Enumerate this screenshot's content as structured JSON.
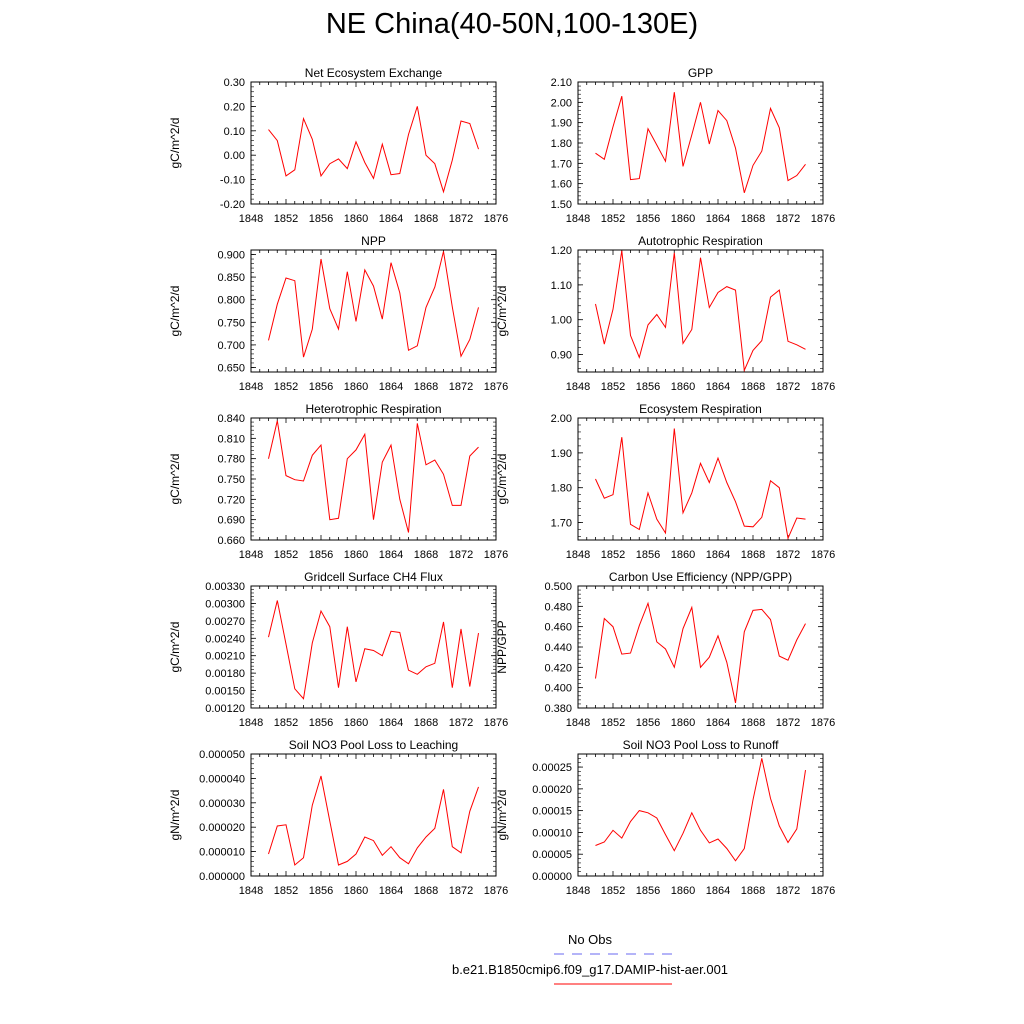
{
  "title": "NE China(40-50N,100-130E)",
  "colors": {
    "model_line": "#ff0000",
    "obs_line": "#6a6af0",
    "axis": "#000000"
  },
  "legend": {
    "obs_label": "No Obs",
    "model_label": "b.e21.B1850cmip6.f09_g17.DAMIP-hist-aer.001"
  },
  "chart_data": [
    {
      "type": "line",
      "title": "Net Ecosystem Exchange",
      "ylabel": "gC/m^2/d",
      "xlim": [
        1848,
        1876
      ],
      "xticks": [
        "1848",
        "1852",
        "1856",
        "1860",
        "1864",
        "1868",
        "1872",
        "1876"
      ],
      "ylim": [
        -0.2,
        0.3
      ],
      "yticks": [
        "-0.20",
        "-0.10",
        "0.00",
        "0.10",
        "0.20",
        "0.30"
      ],
      "x": [
        1850,
        1851,
        1852,
        1853,
        1854,
        1855,
        1856,
        1857,
        1858,
        1859,
        1860,
        1861,
        1862,
        1863,
        1864,
        1865,
        1866,
        1867,
        1868,
        1869,
        1870,
        1871,
        1872,
        1873,
        1874
      ],
      "values": [
        0.105,
        0.06,
        -0.085,
        -0.06,
        0.15,
        0.065,
        -0.085,
        -0.035,
        -0.015,
        -0.055,
        0.055,
        -0.03,
        -0.095,
        0.045,
        -0.08,
        -0.075,
        0.085,
        0.2,
        0.0,
        -0.035,
        -0.15,
        -0.02,
        0.14,
        0.13,
        0.025
      ],
      "series": [
        {
          "name": "b.e21.B1850cmip6.f09_g17.DAMIP-hist-aer.001"
        }
      ]
    },
    {
      "type": "line",
      "title": "GPP",
      "ylabel": "",
      "xlim": [
        1848,
        1876
      ],
      "xticks": [
        "1848",
        "1852",
        "1856",
        "1860",
        "1864",
        "1868",
        "1872",
        "1876"
      ],
      "ylim": [
        1.5,
        2.1
      ],
      "yticks": [
        "1.50",
        "1.60",
        "1.70",
        "1.80",
        "1.90",
        "2.00",
        "2.10"
      ],
      "x": [
        1850,
        1851,
        1852,
        1853,
        1854,
        1855,
        1856,
        1857,
        1858,
        1859,
        1860,
        1861,
        1862,
        1863,
        1864,
        1865,
        1866,
        1867,
        1868,
        1869,
        1870,
        1871,
        1872,
        1873,
        1874
      ],
      "values": [
        1.75,
        1.72,
        1.88,
        2.03,
        1.62,
        1.625,
        1.87,
        1.79,
        1.71,
        2.05,
        1.685,
        1.84,
        2.0,
        1.795,
        1.96,
        1.91,
        1.775,
        1.555,
        1.69,
        1.76,
        1.97,
        1.875,
        1.615,
        1.64,
        1.695
      ],
      "series": [
        {
          "name": "b.e21.B1850cmip6.f09_g17.DAMIP-hist-aer.001"
        }
      ]
    },
    {
      "type": "line",
      "title": "NPP",
      "ylabel": "gC/m^2/d",
      "xlim": [
        1848,
        1876
      ],
      "xticks": [
        "1848",
        "1852",
        "1856",
        "1860",
        "1864",
        "1868",
        "1872",
        "1876"
      ],
      "ylim": [
        0.64,
        0.91
      ],
      "yticks": [
        "0.650",
        "0.700",
        "0.750",
        "0.800",
        "0.850",
        "0.900"
      ],
      "x": [
        1850,
        1851,
        1852,
        1853,
        1854,
        1855,
        1856,
        1857,
        1858,
        1859,
        1860,
        1861,
        1862,
        1863,
        1864,
        1865,
        1866,
        1867,
        1868,
        1869,
        1870,
        1871,
        1872,
        1873,
        1874
      ],
      "values": [
        0.71,
        0.79,
        0.848,
        0.842,
        0.673,
        0.735,
        0.89,
        0.78,
        0.735,
        0.862,
        0.752,
        0.866,
        0.83,
        0.757,
        0.882,
        0.815,
        0.688,
        0.698,
        0.783,
        0.828,
        0.907,
        0.784,
        0.675,
        0.712,
        0.783
      ],
      "series": [
        {
          "name": "b.e21.B1850cmip6.f09_g17.DAMIP-hist-aer.001"
        }
      ]
    },
    {
      "type": "line",
      "title": "Autotrophic Respiration",
      "ylabel": "gC/m^2/d",
      "xlim": [
        1848,
        1876
      ],
      "xticks": [
        "1848",
        "1852",
        "1856",
        "1860",
        "1864",
        "1868",
        "1872",
        "1876"
      ],
      "ylim": [
        0.85,
        1.2
      ],
      "yticks": [
        "0.90",
        "1.00",
        "1.10",
        "1.20"
      ],
      "x": [
        1850,
        1851,
        1852,
        1853,
        1854,
        1855,
        1856,
        1857,
        1858,
        1859,
        1860,
        1861,
        1862,
        1863,
        1864,
        1865,
        1866,
        1867,
        1868,
        1869,
        1870,
        1871,
        1872,
        1873,
        1874
      ],
      "values": [
        1.045,
        0.93,
        1.03,
        1.198,
        0.955,
        0.892,
        0.985,
        1.015,
        0.978,
        1.192,
        0.932,
        0.972,
        1.178,
        1.035,
        1.078,
        1.095,
        1.085,
        0.855,
        0.912,
        0.94,
        1.065,
        1.085,
        0.938,
        0.928,
        0.915
      ],
      "series": [
        {
          "name": "b.e21.B1850cmip6.f09_g17.DAMIP-hist-aer.001"
        }
      ]
    },
    {
      "type": "line",
      "title": "Heterotrophic Respiration",
      "ylabel": "gC/m^2/d",
      "xlim": [
        1848,
        1876
      ],
      "xticks": [
        "1848",
        "1852",
        "1856",
        "1860",
        "1864",
        "1868",
        "1872",
        "1876"
      ],
      "ylim": [
        0.66,
        0.84
      ],
      "yticks": [
        "0.660",
        "0.690",
        "0.720",
        "0.750",
        "0.780",
        "0.810",
        "0.840"
      ],
      "x": [
        1850,
        1851,
        1852,
        1853,
        1854,
        1855,
        1856,
        1857,
        1858,
        1859,
        1860,
        1861,
        1862,
        1863,
        1864,
        1865,
        1866,
        1867,
        1868,
        1869,
        1870,
        1871,
        1872,
        1873,
        1874
      ],
      "values": [
        0.78,
        0.836,
        0.755,
        0.749,
        0.747,
        0.785,
        0.8,
        0.69,
        0.692,
        0.78,
        0.793,
        0.816,
        0.69,
        0.775,
        0.8,
        0.72,
        0.671,
        0.832,
        0.771,
        0.778,
        0.757,
        0.711,
        0.711,
        0.784,
        0.797
      ],
      "series": [
        {
          "name": "b.e21.B1850cmip6.f09_g17.DAMIP-hist-aer.001"
        }
      ]
    },
    {
      "type": "line",
      "title": "Ecosystem Respiration",
      "ylabel": "gC/m^2/d",
      "xlim": [
        1848,
        1876
      ],
      "xticks": [
        "1848",
        "1852",
        "1856",
        "1860",
        "1864",
        "1868",
        "1872",
        "1876"
      ],
      "ylim": [
        1.65,
        2.0
      ],
      "yticks": [
        "1.70",
        "1.80",
        "1.90",
        "2.00"
      ],
      "x": [
        1850,
        1851,
        1852,
        1853,
        1854,
        1855,
        1856,
        1857,
        1858,
        1859,
        1860,
        1861,
        1862,
        1863,
        1864,
        1865,
        1866,
        1867,
        1868,
        1869,
        1870,
        1871,
        1872,
        1873,
        1874
      ],
      "values": [
        1.825,
        1.77,
        1.78,
        1.945,
        1.695,
        1.68,
        1.785,
        1.71,
        1.67,
        1.97,
        1.728,
        1.785,
        1.87,
        1.815,
        1.885,
        1.815,
        1.76,
        1.69,
        1.688,
        1.715,
        1.82,
        1.8,
        1.655,
        1.713,
        1.71
      ],
      "series": [
        {
          "name": "b.e21.B1850cmip6.f09_g17.DAMIP-hist-aer.001"
        }
      ]
    },
    {
      "type": "line",
      "title": "Gridcell Surface CH4 Flux",
      "ylabel": "gC/m^2/d",
      "xlim": [
        1848,
        1876
      ],
      "xticks": [
        "1848",
        "1852",
        "1856",
        "1860",
        "1864",
        "1868",
        "1872",
        "1876"
      ],
      "ylim": [
        0.0012,
        0.0033
      ],
      "yticks": [
        "0.00120",
        "0.00150",
        "0.00180",
        "0.00210",
        "0.00240",
        "0.00270",
        "0.00300",
        "0.00330"
      ],
      "x": [
        1850,
        1851,
        1852,
        1853,
        1854,
        1855,
        1856,
        1857,
        1858,
        1859,
        1860,
        1861,
        1862,
        1863,
        1864,
        1865,
        1866,
        1867,
        1868,
        1869,
        1870,
        1871,
        1872,
        1873,
        1874
      ],
      "values": [
        0.00242,
        0.00305,
        0.0023,
        0.00153,
        0.00136,
        0.00232,
        0.00287,
        0.0026,
        0.00155,
        0.0026,
        0.00165,
        0.00222,
        0.00219,
        0.0021,
        0.00252,
        0.0025,
        0.00185,
        0.00178,
        0.00191,
        0.00197,
        0.00268,
        0.00155,
        0.00256,
        0.00157,
        0.00249
      ],
      "series": [
        {
          "name": "b.e21.B1850cmip6.f09_g17.DAMIP-hist-aer.001"
        }
      ]
    },
    {
      "type": "line",
      "title": "Carbon Use Efficiency (NPP/GPP)",
      "ylabel": "NPP/GPP",
      "xlim": [
        1848,
        1876
      ],
      "xticks": [
        "1848",
        "1852",
        "1856",
        "1860",
        "1864",
        "1868",
        "1872",
        "1876"
      ],
      "ylim": [
        0.38,
        0.5
      ],
      "yticks": [
        "0.380",
        "0.400",
        "0.420",
        "0.440",
        "0.460",
        "0.480",
        "0.500"
      ],
      "x": [
        1850,
        1851,
        1852,
        1853,
        1854,
        1855,
        1856,
        1857,
        1858,
        1859,
        1860,
        1861,
        1862,
        1863,
        1864,
        1865,
        1866,
        1867,
        1868,
        1869,
        1870,
        1871,
        1872,
        1873,
        1874
      ],
      "values": [
        0.409,
        0.468,
        0.46,
        0.433,
        0.434,
        0.461,
        0.483,
        0.445,
        0.438,
        0.42,
        0.458,
        0.479,
        0.42,
        0.43,
        0.451,
        0.425,
        0.385,
        0.455,
        0.476,
        0.477,
        0.467,
        0.431,
        0.427,
        0.447,
        0.463
      ],
      "series": [
        {
          "name": "b.e21.B1850cmip6.f09_g17.DAMIP-hist-aer.001"
        }
      ]
    },
    {
      "type": "line",
      "title": "Soil NO3 Pool Loss to Leaching",
      "ylabel": "gN/m^2/d",
      "xlim": [
        1848,
        1876
      ],
      "xticks": [
        "1848",
        "1852",
        "1856",
        "1860",
        "1864",
        "1868",
        "1872",
        "1876"
      ],
      "ylim": [
        0.0,
        5e-05
      ],
      "yticks": [
        "0.000000",
        "0.000010",
        "0.000020",
        "0.000030",
        "0.000040",
        "0.000050"
      ],
      "x": [
        1850,
        1851,
        1852,
        1853,
        1854,
        1855,
        1856,
        1857,
        1858,
        1859,
        1860,
        1861,
        1862,
        1863,
        1864,
        1865,
        1866,
        1867,
        1868,
        1869,
        1870,
        1871,
        1872,
        1873,
        1874
      ],
      "values": [
        9e-06,
        2.05e-05,
        2.1e-05,
        4.5e-06,
        7.5e-06,
        2.9e-05,
        4.1e-05,
        2.25e-05,
        4.5e-06,
        6e-06,
        9e-06,
        1.6e-05,
        1.45e-05,
        8.5e-06,
        1.2e-05,
        7.5e-06,
        5e-06,
        1.15e-05,
        1.6e-05,
        1.95e-05,
        3.55e-05,
        1.2e-05,
        9.5e-06,
        2.65e-05,
        3.65e-05
      ],
      "series": [
        {
          "name": "b.e21.B1850cmip6.f09_g17.DAMIP-hist-aer.001"
        }
      ]
    },
    {
      "type": "line",
      "title": "Soil NO3 Pool Loss to Runoff",
      "ylabel": "gN/m^2/d",
      "xlim": [
        1848,
        1876
      ],
      "xticks": [
        "1848",
        "1852",
        "1856",
        "1860",
        "1864",
        "1868",
        "1872",
        "1876"
      ],
      "ylim": [
        0.0,
        0.00028
      ],
      "yticks": [
        "0.00000",
        "0.00005",
        "0.00010",
        "0.00015",
        "0.00020",
        "0.00025"
      ],
      "x": [
        1850,
        1851,
        1852,
        1853,
        1854,
        1855,
        1856,
        1857,
        1858,
        1859,
        1860,
        1861,
        1862,
        1863,
        1864,
        1865,
        1866,
        1867,
        1868,
        1869,
        1870,
        1871,
        1872,
        1873,
        1874
      ],
      "values": [
        7e-05,
        7.8e-05,
        0.000105,
        8.7e-05,
        0.000125,
        0.00015,
        0.000145,
        0.000133,
        9.5e-05,
        5.8e-05,
        9.8e-05,
        0.000145,
        0.000105,
        7.6e-05,
        8.5e-05,
        6.3e-05,
        3.5e-05,
        6.3e-05,
        0.000175,
        0.00027,
        0.000178,
        0.000115,
        7.7e-05,
        0.000108,
        0.000243
      ],
      "series": [
        {
          "name": "b.e21.B1850cmip6.f09_g17.DAMIP-hist-aer.001"
        }
      ]
    }
  ]
}
